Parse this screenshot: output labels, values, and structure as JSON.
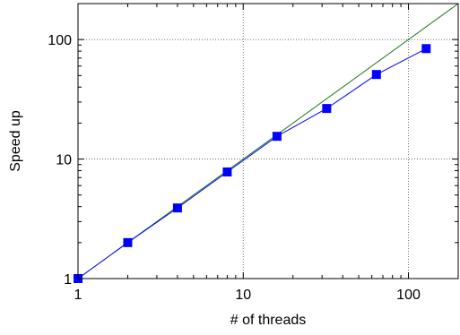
{
  "chart_data": {
    "type": "line",
    "title": "",
    "xlabel": "# of threads",
    "ylabel": "Speed up",
    "xscale": "log",
    "yscale": "log",
    "xlim": [
      1,
      200
    ],
    "ylim": [
      1,
      200
    ],
    "grid": true,
    "legend": "none",
    "x_ticks": [
      1,
      10,
      100
    ],
    "x_tick_labels": [
      "1",
      "10",
      "100"
    ],
    "y_ticks": [
      1,
      10,
      100
    ],
    "y_tick_labels": [
      "1",
      "10",
      "100"
    ],
    "series": [
      {
        "color": "#0000ff",
        "marker": "square",
        "x": [
          1,
          2,
          4,
          8,
          16,
          32,
          64,
          128
        ],
        "y": [
          1,
          2,
          3.9,
          7.8,
          15.5,
          26.5,
          51,
          84
        ]
      },
      {
        "color": "#1a7a1a",
        "marker": "none",
        "x": [
          1,
          200
        ],
        "y": [
          1,
          200
        ]
      }
    ]
  }
}
